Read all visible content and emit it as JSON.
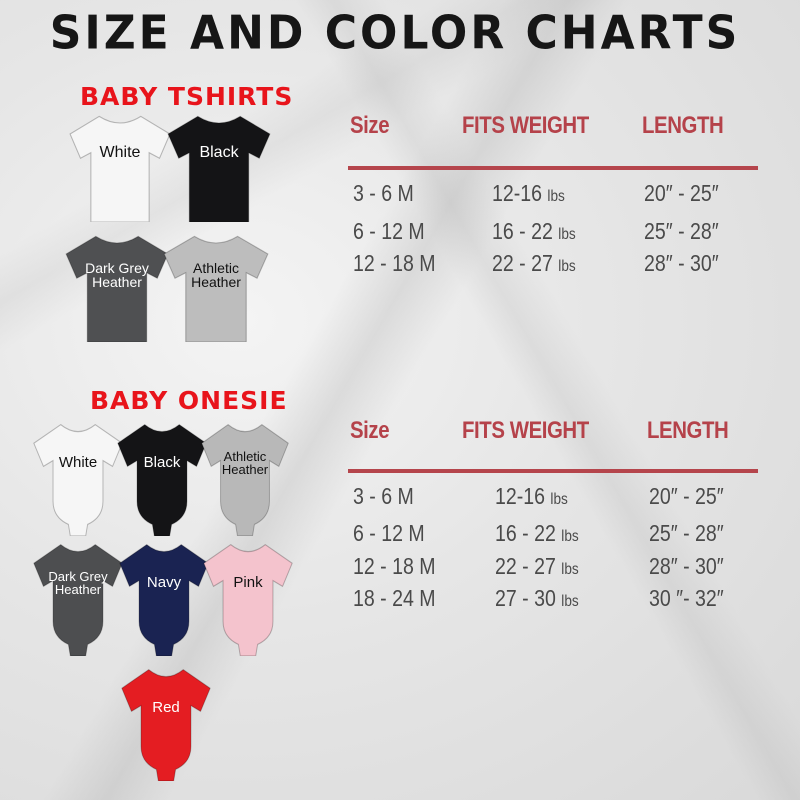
{
  "title": "SIZE AND COLOR CHARTS",
  "tshirts": {
    "heading": "BABY TSHIRTS",
    "items": [
      {
        "label": "White",
        "color": "#f6f6f6",
        "text": "#111"
      },
      {
        "label": "Black",
        "color": "#141416",
        "text": "#fff"
      },
      {
        "label": "Dark Grey Heather",
        "color": "#4f5052",
        "text": "#fff"
      },
      {
        "label": "Athletic Heather",
        "color": "#bdbdbd",
        "text": "#111"
      }
    ]
  },
  "onesies": {
    "heading": "BABY ONESIE",
    "items": [
      {
        "label": "White",
        "color": "#f6f6f6",
        "text": "#111"
      },
      {
        "label": "Black",
        "color": "#141416",
        "text": "#fff"
      },
      {
        "label": "Athletic Heather",
        "color": "#b8b8b8",
        "text": "#111"
      },
      {
        "label": "Dark Grey Heather",
        "color": "#4d4e50",
        "text": "#fff"
      },
      {
        "label": "Navy",
        "color": "#1a2352",
        "text": "#fff"
      },
      {
        "label": "Pink",
        "color": "#f4c3cd",
        "text": "#111"
      },
      {
        "label": "Red",
        "color": "#e41d22",
        "text": "#fff"
      }
    ]
  },
  "table_headers": {
    "size": "Size",
    "weight": "FITS WEIGHT",
    "length": "LENGTH"
  },
  "tshirt_table": [
    {
      "size": "3 - 6 M",
      "weight": "12-16",
      "unit": "lbs",
      "length": "20″ - 25″"
    },
    {
      "size": "6 - 12 M",
      "weight": "16 - 22",
      "unit": "lbs",
      "length": "25″ - 28″"
    },
    {
      "size": "12 - 18 M",
      "weight": "22 - 27",
      "unit": "lbs",
      "length": "28″ - 30″"
    }
  ],
  "onesie_table": [
    {
      "size": "3 - 6 M",
      "weight": "12-16",
      "unit": "lbs",
      "length": "20″ - 25″"
    },
    {
      "size": "6 - 12 M",
      "weight": "16 - 22",
      "unit": "lbs",
      "length": "25″ - 28″"
    },
    {
      "size": "12 - 18 M",
      "weight": "22 - 27",
      "unit": "lbs",
      "length": "28″ - 30″"
    },
    {
      "size": "18 - 24 M",
      "weight": "27 - 30",
      "unit": "lbs",
      "length": "30 ″- 32″"
    }
  ],
  "colors": {
    "accent_red": "#e8141b",
    "table_red": "#b5424a"
  }
}
